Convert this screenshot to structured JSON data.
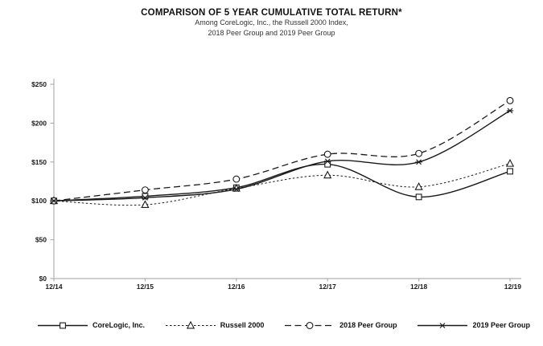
{
  "chart_data": {
    "type": "line",
    "title": "COMPARISON OF 5 YEAR CUMULATIVE TOTAL RETURN*",
    "subtitle_lines": [
      "Among CoreLogic, Inc., the Russell 2000 Index,",
      "2018 Peer Group and 2019 Peer Group"
    ],
    "categories": [
      "12/14",
      "12/15",
      "12/16",
      "12/17",
      "12/18",
      "12/19"
    ],
    "series": [
      {
        "name": "CoreLogic, Inc.",
        "marker": "square",
        "dash": "solid",
        "values": [
          100,
          106,
          117,
          147,
          105,
          138
        ]
      },
      {
        "name": "Russell 2000",
        "marker": "triangle",
        "dash": "dotted",
        "values": [
          100,
          95,
          116,
          133,
          118,
          148
        ]
      },
      {
        "name": "2018 Peer Group",
        "marker": "circle",
        "dash": "dashed",
        "values": [
          100,
          114,
          128,
          160,
          161,
          229
        ]
      },
      {
        "name": "2019 Peer Group",
        "marker": "asterisk",
        "dash": "solid",
        "values": [
          100,
          104,
          115,
          151,
          150,
          216
        ]
      }
    ],
    "xlabel": "",
    "ylabel": "",
    "ylim": [
      0,
      250
    ],
    "ytick_step": 50,
    "ytick_labels": [
      "$0",
      "$50",
      "$100",
      "$150",
      "$200",
      "$250"
    ],
    "grid": false,
    "legend_position": "bottom"
  },
  "colors": {
    "line": "#1a1a1a",
    "axis": "#b0b0b0",
    "background": "#ffffff"
  }
}
